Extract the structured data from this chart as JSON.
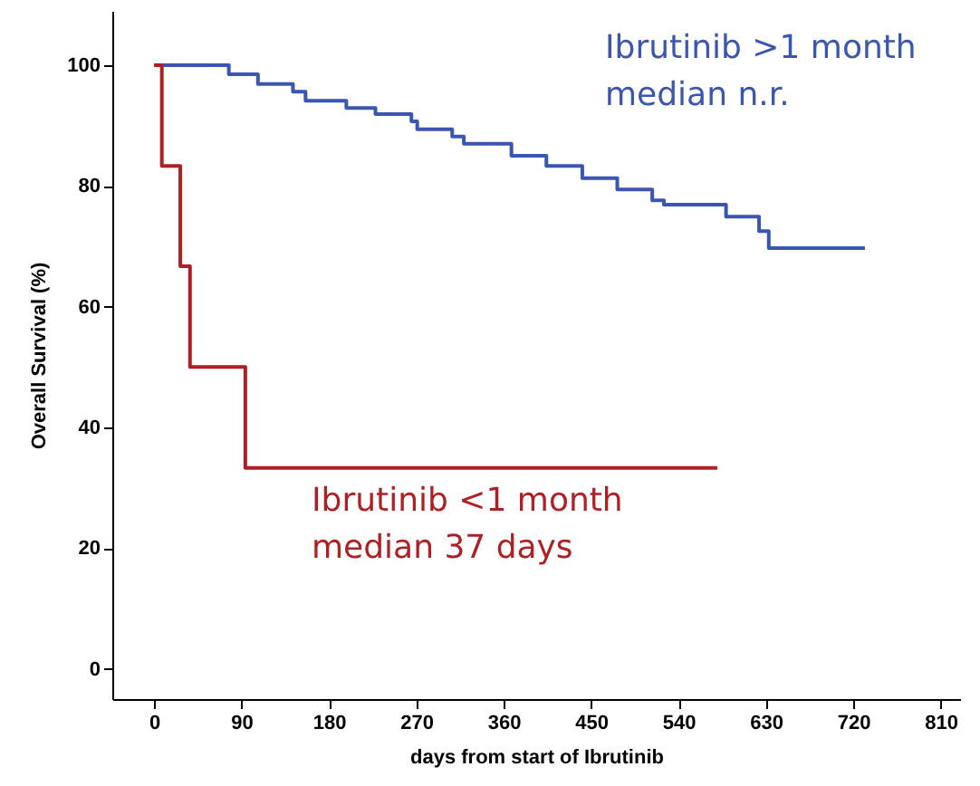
{
  "chart_data": {
    "type": "step",
    "xlabel": "days from start of Ibrutinib",
    "ylabel": "Overall Survival (%)",
    "xlim": [
      -43,
      830
    ],
    "xticks": [
      0,
      90,
      180,
      270,
      360,
      450,
      540,
      630,
      720,
      810
    ],
    "ylim": [
      -5,
      109
    ],
    "yticks": [
      0,
      20,
      40,
      60,
      80,
      100
    ],
    "grid": false,
    "marker": "none",
    "series": [
      {
        "name": "Ibrutinib >1 month",
        "color": "#3a56b0",
        "x": [
          4,
          46,
          77,
          107,
          143,
          156,
          198,
          228,
          265,
          271,
          307,
          319,
          368,
          404,
          441,
          477,
          513,
          525,
          583,
          589,
          619,
          623,
          632,
          633,
          732
        ],
        "values": [
          100,
          100,
          98.5,
          96.9,
          95.6,
          94.1,
          92.9,
          91.9,
          90.7,
          89.4,
          88.2,
          87.0,
          85.0,
          83.3,
          81.3,
          79.4,
          77.6,
          76.9,
          76.9,
          74.9,
          74.9,
          72.5,
          72.5,
          69.7,
          69.7
        ]
      },
      {
        "name": "Ibrutinib <1 month",
        "color": "#b01f24",
        "x": [
          0,
          8,
          27,
          37,
          94,
          413,
          580
        ],
        "values": [
          100,
          83.3,
          66.7,
          50,
          33.3,
          33.3,
          33.3
        ]
      }
    ],
    "annotations": [
      "median n.r.",
      "median 37 days"
    ]
  }
}
